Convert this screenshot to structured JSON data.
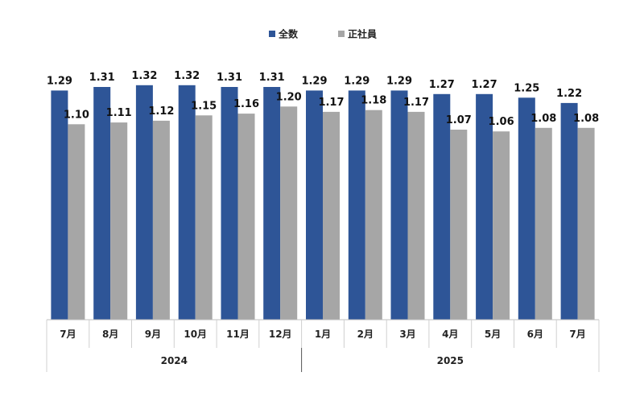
{
  "chart_data": {
    "type": "bar",
    "categories": [
      "7月",
      "8月",
      "9月",
      "10月",
      "11月",
      "12月",
      "1月",
      "2月",
      "3月",
      "4月",
      "5月",
      "6月",
      "7月"
    ],
    "groups": [
      {
        "label": "2024",
        "count": 6
      },
      {
        "label": "2025",
        "count": 7
      }
    ],
    "series": [
      {
        "name": "全数",
        "color": "#2E5597",
        "values": [
          1.29,
          1.31,
          1.32,
          1.32,
          1.31,
          1.31,
          1.29,
          1.29,
          1.29,
          1.27,
          1.27,
          1.25,
          1.22
        ],
        "labels": [
          "1.29",
          "1.31",
          "1.32",
          "1.32",
          "1.31",
          "1.31",
          "1.29",
          "1.29",
          "1.29",
          "1.27",
          "1.27",
          "1.25",
          "1.22"
        ]
      },
      {
        "name": "正社員",
        "color": "#A6A6A6",
        "values": [
          1.1,
          1.11,
          1.12,
          1.15,
          1.16,
          1.2,
          1.17,
          1.18,
          1.17,
          1.07,
          1.06,
          1.08,
          1.08
        ],
        "labels": [
          "1.10",
          "1.11",
          "1.12",
          "1.15",
          "1.16",
          "1.20",
          "1.17",
          "1.18",
          "1.17",
          "1.07",
          "1.06",
          "1.08",
          "1.08"
        ]
      }
    ],
    "ylim": [
      0,
      1.45
    ],
    "grid": false,
    "legend_position": "top-center"
  }
}
